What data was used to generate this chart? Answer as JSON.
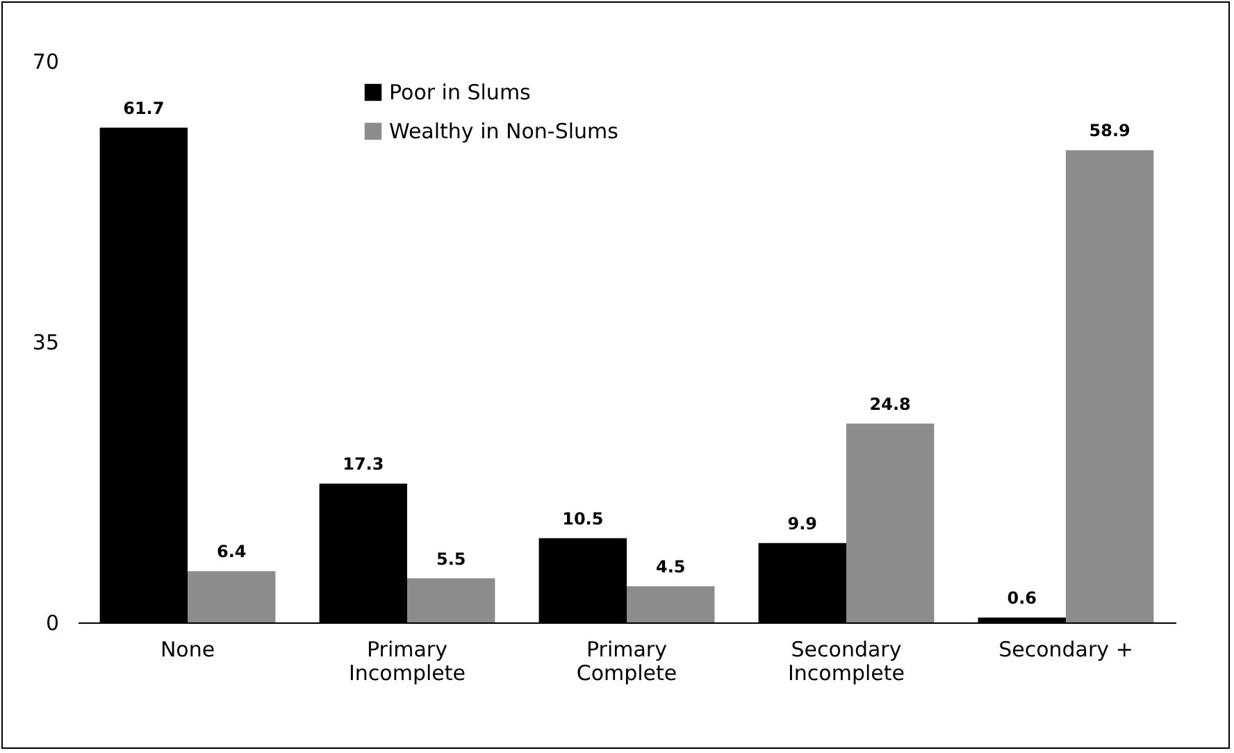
{
  "chart_data": {
    "type": "bar",
    "categories": [
      "None",
      "Primary\nIncomplete",
      "Primary\nComplete",
      "Secondary\nIncomplete",
      "Secondary +"
    ],
    "series": [
      {
        "name": "Poor in Slums",
        "color": "#000000",
        "values": [
          61.7,
          17.3,
          10.5,
          9.9,
          0.6
        ]
      },
      {
        "name": "Wealthy in Non-Slums",
        "color": "#8c8c8c",
        "values": [
          6.4,
          5.5,
          4.5,
          24.8,
          58.9
        ]
      }
    ],
    "ylim": [
      0,
      70
    ],
    "yticks": [
      0,
      35,
      70
    ],
    "grid": false,
    "legend": "top",
    "data_labels": true
  }
}
